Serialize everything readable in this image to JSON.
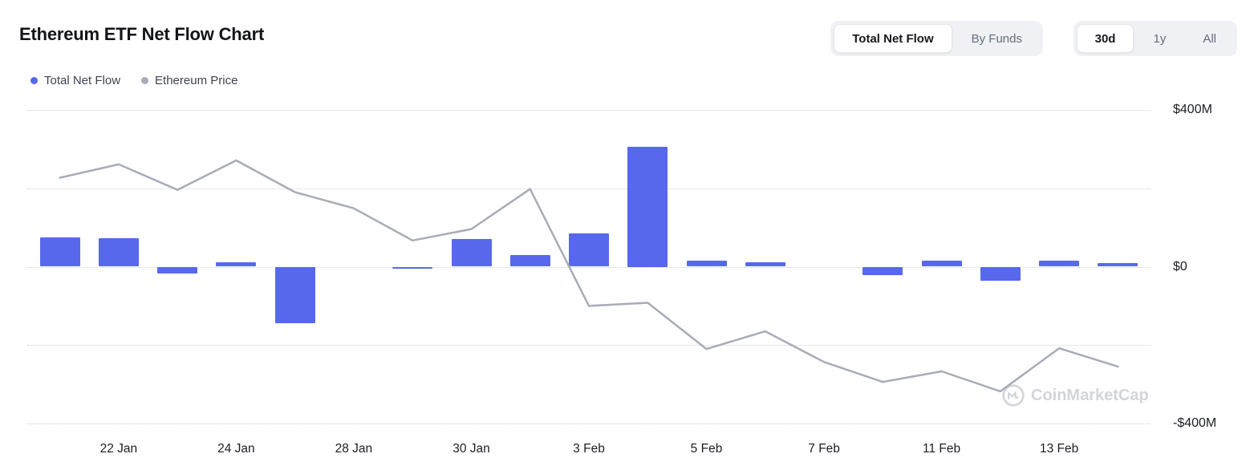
{
  "page": {
    "title": "Ethereum ETF Net Flow Chart"
  },
  "controls": {
    "view_toggle": [
      {
        "label": "Total Net Flow",
        "active": true
      },
      {
        "label": "By Funds",
        "active": false
      }
    ],
    "range_toggle": [
      {
        "label": "30d",
        "active": true
      },
      {
        "label": "1y",
        "active": false
      },
      {
        "label": "All",
        "active": false
      }
    ]
  },
  "legend": [
    {
      "label": "Total Net Flow",
      "color": "#5868ec"
    },
    {
      "label": "Ethereum Price",
      "color": "#a8acb8"
    }
  ],
  "watermark": "CoinMarketCap",
  "chart_data": {
    "type": "bar",
    "title": "Ethereum ETF Net Flow Chart",
    "xlabel": "",
    "ylabel": "",
    "categories": [
      "",
      "22 Jan",
      "",
      "24 Jan",
      "",
      "28 Jan",
      "",
      "30 Jan",
      "",
      "3 Feb",
      "",
      "5 Feb",
      "",
      "7 Feb",
      "",
      "11 Feb",
      "",
      "13 Feb",
      ""
    ],
    "series": [
      {
        "name": "Total Net Flow",
        "type": "bar",
        "unit": "$M",
        "color": "#5868ec",
        "values": [
          75,
          72,
          -18,
          12,
          -145,
          0,
          -5,
          70,
          30,
          84,
          307,
          16,
          12,
          0,
          -22,
          16,
          -35,
          16,
          10
        ]
      },
      {
        "name": "Ethereum Price",
        "type": "line",
        "color": "#a8acb8",
        "note": "price axis not labeled on screen; values estimated on the visible net-flow axis scale",
        "values": [
          227,
          261,
          196,
          271,
          190,
          149,
          67,
          96,
          198,
          -100,
          -92,
          -210,
          -165,
          -243,
          -294,
          -267,
          -318,
          -208,
          -255
        ]
      }
    ],
    "y_axis": {
      "side": "right",
      "range": [
        -400,
        400
      ],
      "gridlines": [
        400,
        200,
        0,
        -200,
        -400
      ],
      "grid_style": "dotted",
      "ticks": [
        {
          "value": 400,
          "label": "$400M"
        },
        {
          "value": 0,
          "label": "$0"
        },
        {
          "value": -400,
          "label": "-$400M"
        }
      ]
    },
    "legend_position": "top-left"
  }
}
